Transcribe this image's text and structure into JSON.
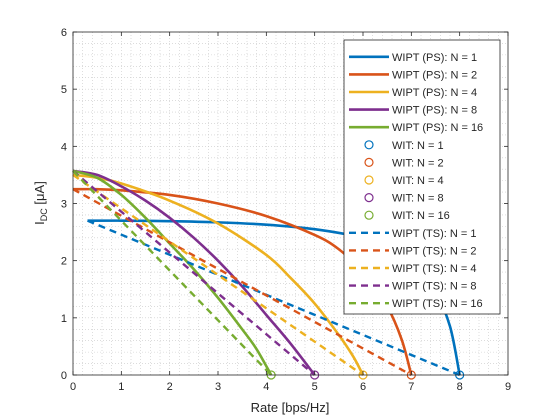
{
  "chart_data": {
    "type": "line",
    "xlabel": "Rate [bps/Hz]",
    "ylabel": "I",
    "ylabel_sub": "DC",
    "ylabel_unit": " [μA]",
    "xlim": [
      0,
      9
    ],
    "ylim": [
      0,
      6
    ],
    "xticks": [
      0,
      1,
      2,
      3,
      4,
      5,
      6,
      7,
      8,
      9
    ],
    "yticks": [
      0,
      1,
      2,
      3,
      4,
      5,
      6
    ],
    "grid": "minor dotted",
    "legend_position": "top-right",
    "colors": {
      "N1": "#0072BD",
      "N2": "#D95319",
      "N4": "#EDB120",
      "N8": "#7E2F8E",
      "N16": "#77AC30"
    },
    "series": [
      {
        "name": "WIPT (PS): N = 1",
        "style": "solid",
        "color": "#0072BD",
        "points": [
          [
            0.3,
            2.7
          ],
          [
            1,
            2.7
          ],
          [
            2,
            2.69
          ],
          [
            3,
            2.67
          ],
          [
            4,
            2.63
          ],
          [
            5,
            2.55
          ],
          [
            6,
            2.4
          ],
          [
            6.5,
            2.25
          ],
          [
            7,
            2.0
          ],
          [
            7.5,
            1.45
          ],
          [
            7.8,
            0.85
          ],
          [
            8,
            0.0
          ]
        ]
      },
      {
        "name": "WIPT (PS): N = 2",
        "style": "solid",
        "color": "#D95319",
        "points": [
          [
            0,
            3.25
          ],
          [
            0.5,
            3.25
          ],
          [
            1,
            3.23
          ],
          [
            2,
            3.15
          ],
          [
            3,
            3.0
          ],
          [
            4,
            2.78
          ],
          [
            5,
            2.45
          ],
          [
            5.5,
            2.2
          ],
          [
            6,
            1.8
          ],
          [
            6.5,
            1.2
          ],
          [
            6.8,
            0.62
          ],
          [
            7,
            0.0
          ]
        ]
      },
      {
        "name": "WIPT (PS): N = 4",
        "style": "solid",
        "color": "#EDB120",
        "points": [
          [
            0,
            3.5
          ],
          [
            0.5,
            3.45
          ],
          [
            1,
            3.35
          ],
          [
            2,
            3.05
          ],
          [
            3,
            2.65
          ],
          [
            4,
            2.1
          ],
          [
            4.5,
            1.7
          ],
          [
            5,
            1.25
          ],
          [
            5.5,
            0.7
          ],
          [
            5.8,
            0.32
          ],
          [
            6,
            0.0
          ]
        ]
      },
      {
        "name": "WIPT (PS): N = 8",
        "style": "solid",
        "color": "#7E2F8E",
        "points": [
          [
            0,
            3.57
          ],
          [
            0.5,
            3.5
          ],
          [
            1,
            3.3
          ],
          [
            1.5,
            3.05
          ],
          [
            2,
            2.75
          ],
          [
            2.5,
            2.4
          ],
          [
            3,
            2.0
          ],
          [
            3.5,
            1.55
          ],
          [
            4,
            1.05
          ],
          [
            4.5,
            0.55
          ],
          [
            5,
            0.0
          ]
        ]
      },
      {
        "name": "WIPT (PS): N = 16",
        "style": "solid",
        "color": "#77AC30",
        "points": [
          [
            0,
            3.57
          ],
          [
            0.5,
            3.45
          ],
          [
            1,
            3.15
          ],
          [
            1.5,
            2.75
          ],
          [
            2,
            2.3
          ],
          [
            2.5,
            1.85
          ],
          [
            3,
            1.35
          ],
          [
            3.5,
            0.8
          ],
          [
            3.8,
            0.45
          ],
          [
            4.1,
            0.0
          ]
        ]
      },
      {
        "name": "WIT: N = 1",
        "style": "marker",
        "color": "#0072BD",
        "points": [
          [
            8,
            0
          ]
        ]
      },
      {
        "name": "WIT: N = 2",
        "style": "marker",
        "color": "#D95319",
        "points": [
          [
            7,
            0
          ]
        ]
      },
      {
        "name": "WIT: N = 4",
        "style": "marker",
        "color": "#EDB120",
        "points": [
          [
            6,
            0
          ]
        ]
      },
      {
        "name": "WIT: N = 8",
        "style": "marker",
        "color": "#7E2F8E",
        "points": [
          [
            5,
            0
          ]
        ]
      },
      {
        "name": "WIT: N = 16",
        "style": "marker",
        "color": "#77AC30",
        "points": [
          [
            4.1,
            0
          ]
        ]
      },
      {
        "name": "WIPT (TS): N = 1",
        "style": "dashed",
        "color": "#0072BD",
        "points": [
          [
            0.3,
            2.7
          ],
          [
            8,
            0.0
          ]
        ]
      },
      {
        "name": "WIPT (TS): N = 2",
        "style": "dashed",
        "color": "#D95319",
        "points": [
          [
            0,
            3.25
          ],
          [
            7,
            0.0
          ]
        ]
      },
      {
        "name": "WIPT (TS): N = 4",
        "style": "dashed",
        "color": "#EDB120",
        "points": [
          [
            0,
            3.5
          ],
          [
            6,
            0.0
          ]
        ]
      },
      {
        "name": "WIPT (TS): N = 8",
        "style": "dashed",
        "color": "#7E2F8E",
        "points": [
          [
            0,
            3.57
          ],
          [
            5,
            0.0
          ]
        ]
      },
      {
        "name": "WIPT (TS): N = 16",
        "style": "dashed",
        "color": "#77AC30",
        "points": [
          [
            0,
            3.57
          ],
          [
            4.1,
            0.0
          ]
        ]
      }
    ]
  }
}
